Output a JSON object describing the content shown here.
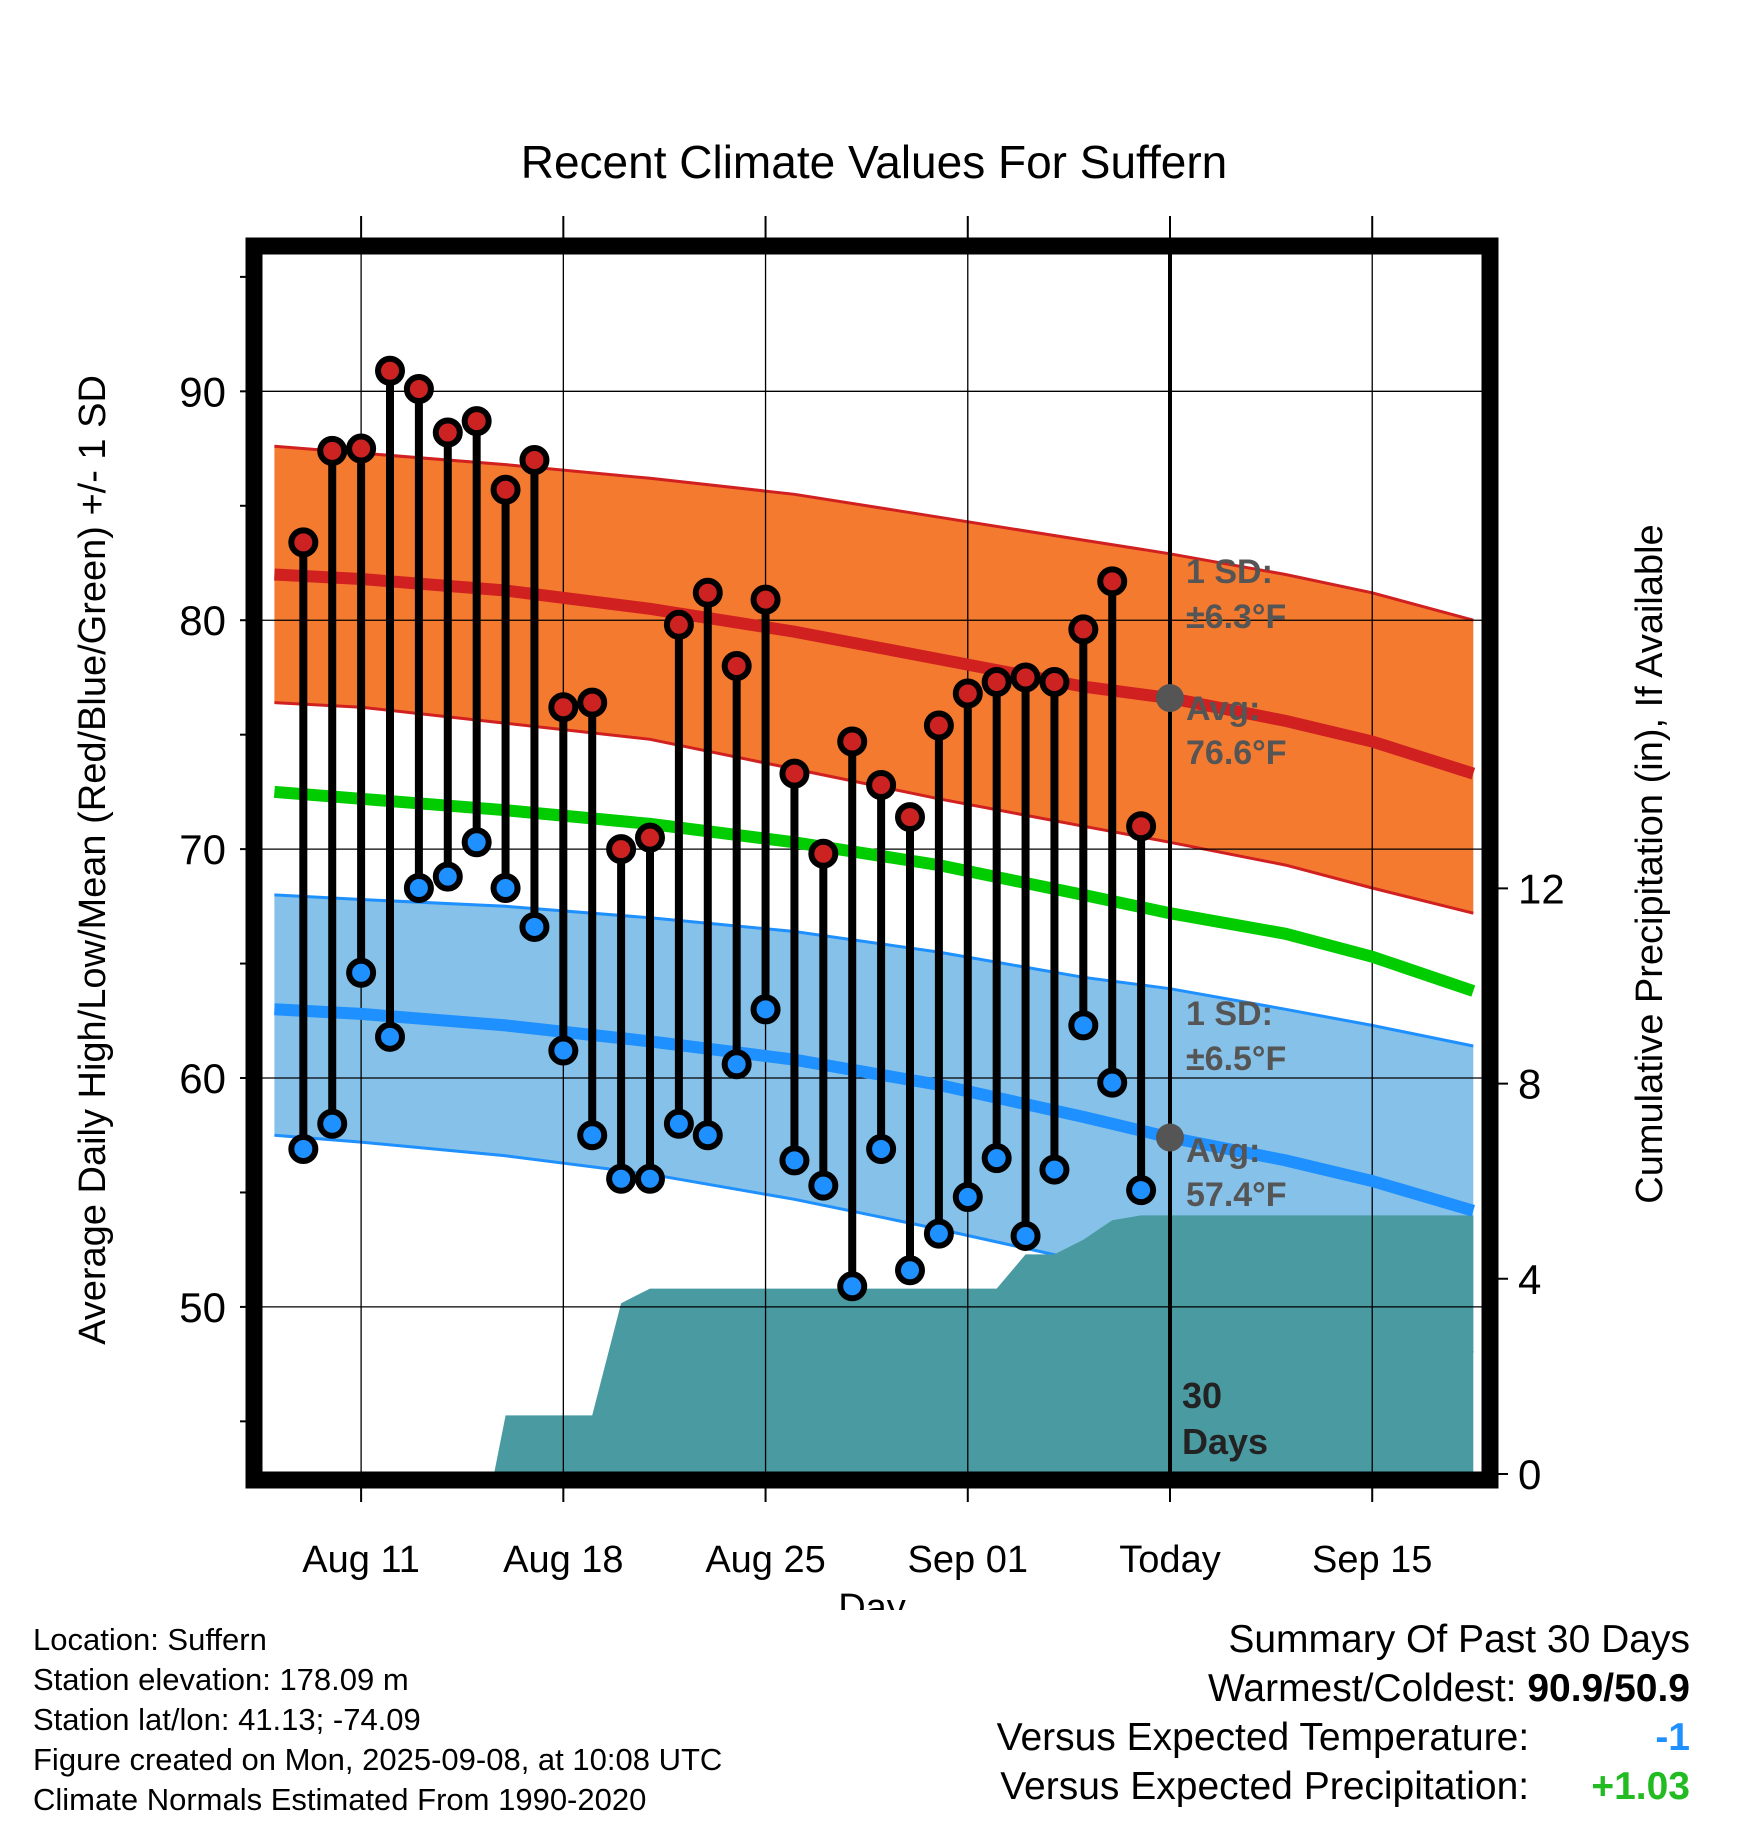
{
  "chart_data": {
    "type": "line",
    "title": "Recent Climate Values For Suffern",
    "xlabel": "Day",
    "ylabel": "Average Daily High/Low/Mean (Red/Blue/Green) +/- 1 SD",
    "y2label": "Cumulative Precipitation (in), If Available",
    "xlim": [
      -3.5,
      38.8
    ],
    "ylim": [
      42.7,
      96.0
    ],
    "y2lim": [
      0,
      25.0
    ],
    "x_ticks": [
      {
        "x": 0,
        "label": "Aug 11"
      },
      {
        "x": 7,
        "label": "Aug 18"
      },
      {
        "x": 14,
        "label": "Aug 25"
      },
      {
        "x": 21,
        "label": "Sep 01"
      },
      {
        "x": 28,
        "label": "Today"
      },
      {
        "x": 35,
        "label": "Sep 15"
      }
    ],
    "y_ticks": [
      50,
      60,
      70,
      80,
      90
    ],
    "y2_ticks": [
      0,
      4,
      8,
      12
    ],
    "grid": true,
    "normals": {
      "x": [
        -3,
        0,
        5,
        10,
        15,
        20,
        25,
        28,
        32,
        35,
        38.5
      ],
      "high_mean": [
        82.0,
        81.8,
        81.3,
        80.5,
        79.5,
        78.3,
        77.1,
        76.6,
        75.6,
        74.7,
        73.3
      ],
      "high_upper": [
        87.6,
        87.3,
        86.8,
        86.2,
        85.5,
        84.5,
        83.5,
        82.9,
        82.0,
        81.2,
        80.0
      ],
      "high_lower": [
        76.4,
        76.2,
        75.5,
        74.8,
        73.5,
        72.2,
        71.0,
        70.3,
        69.3,
        68.3,
        67.2
      ],
      "mean": [
        72.5,
        72.2,
        71.7,
        71.1,
        70.3,
        69.3,
        68.0,
        67.2,
        66.3,
        65.3,
        63.8
      ],
      "low_mean": [
        63.0,
        62.8,
        62.3,
        61.6,
        60.8,
        59.7,
        58.3,
        57.4,
        56.4,
        55.5,
        54.2
      ],
      "low_upper": [
        68.0,
        67.8,
        67.5,
        67.0,
        66.4,
        65.5,
        64.4,
        63.9,
        63.0,
        62.3,
        61.4
      ],
      "low_lower": [
        57.5,
        57.2,
        56.6,
        55.8,
        54.7,
        53.4,
        52.0,
        51.2,
        50.2,
        49.3,
        48.0
      ]
    },
    "daily": {
      "x": [
        -2,
        -1,
        0,
        1,
        2,
        3,
        4,
        5,
        6,
        7,
        8,
        9,
        10,
        11,
        12,
        13,
        14,
        15,
        16,
        17,
        18,
        19,
        20,
        21,
        22,
        23,
        24,
        25,
        26,
        27
      ],
      "high": [
        83.4,
        87.4,
        87.5,
        90.9,
        90.1,
        88.2,
        88.7,
        85.7,
        87.0,
        76.2,
        76.4,
        70.0,
        70.5,
        79.8,
        81.2,
        78.0,
        80.9,
        73.3,
        69.8,
        74.7,
        72.8,
        71.4,
        75.4,
        76.8,
        77.3,
        77.5,
        77.3,
        79.6,
        81.7,
        71.0
      ],
      "low": [
        56.9,
        58.0,
        64.6,
        61.8,
        68.3,
        68.8,
        70.3,
        68.3,
        66.6,
        61.2,
        57.5,
        55.6,
        55.6,
        58.0,
        57.5,
        60.6,
        63.0,
        56.4,
        55.3,
        50.9,
        56.9,
        51.6,
        53.2,
        54.8,
        56.5,
        53.1,
        56.0,
        62.3,
        59.8,
        55.1
      ]
    },
    "precip": {
      "x": [
        1.2,
        2.2,
        4.6,
        5.0,
        8.0,
        9.0,
        10.0,
        13.0,
        20.0,
        22.0,
        23.0,
        24.0,
        25.0,
        26.0,
        27.0,
        28.0,
        38.5
      ],
      "values": [
        0,
        0,
        0,
        1.2,
        1.2,
        3.5,
        3.8,
        3.8,
        3.8,
        3.8,
        4.5,
        4.5,
        4.8,
        5.2,
        5.3,
        5.3,
        5.3
      ]
    },
    "today_x": 28,
    "today_label": "30 Days",
    "annotations": {
      "high_sd": "1 SD:",
      "high_sd_val": "±6.3°F",
      "high_avg": "Avg:",
      "high_avg_val": "76.6°F",
      "low_sd": "1 SD:",
      "low_sd_val": "±6.5°F",
      "low_avg": "Avg:",
      "low_avg_val": "57.4°F"
    },
    "colors": {
      "high_band": "#f47a30",
      "high_line": "#d02020",
      "mean_line": "#00cc00",
      "low_band": "#85c1e8",
      "low_line": "#1e90ff",
      "precip": "#4a9aa2",
      "high_dot": "#cc2222",
      "low_dot": "#1e90ff",
      "annotation": "#555555"
    }
  },
  "info": {
    "location": "Location: Suffern",
    "elevation": "Station elevation: 178.09 m",
    "latlon": "Station lat/lon: 41.13; -74.09",
    "created": "Figure created on Mon, 2025-09-08, at 10:08 UTC",
    "normals": "Climate Normals Estimated From 1990-2020"
  },
  "summary": {
    "heading": "Summary Of Past 30 Days",
    "warmest_label": "Warmest/Coldest:",
    "warmest_value": "90.9/50.9",
    "temp_label": "Versus Expected Temperature:",
    "temp_value": "-1",
    "temp_color": "#1e90ff",
    "precip_label": "Versus Expected Precipitation:",
    "precip_value": "+1.03",
    "precip_color": "#22bb22"
  }
}
